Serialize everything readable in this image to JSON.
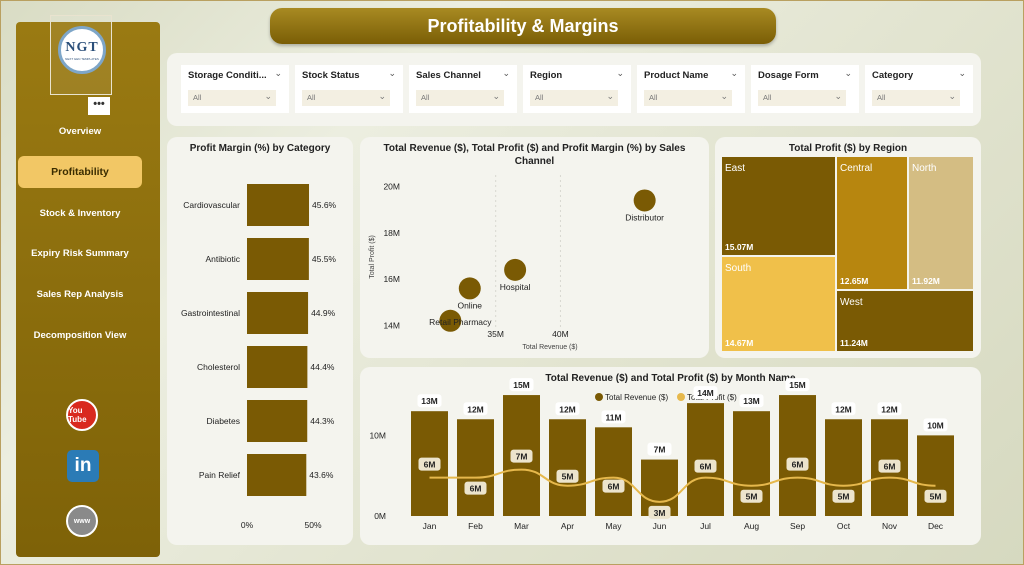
{
  "page_title": "Profitability & Margins",
  "logo": {
    "text": "NGT",
    "sub": "NEXT GEN TEMPLATES"
  },
  "more_label": "•••",
  "sidebar": {
    "items": [
      {
        "label": "Overview",
        "active": false
      },
      {
        "label": "Profitability",
        "active": true
      },
      {
        "label": "Stock & Inventory",
        "active": false
      },
      {
        "label": "Expiry Risk Summary",
        "active": false
      },
      {
        "label": "Sales Rep Analysis",
        "active": false
      },
      {
        "label": "Decomposition View",
        "active": false
      }
    ],
    "social": {
      "youtube": "You Tube",
      "linkedin": "in",
      "web": "www"
    }
  },
  "filters": [
    {
      "label": "Storage Conditi...",
      "value": "All"
    },
    {
      "label": "Stock Status",
      "value": "All"
    },
    {
      "label": "Sales Channel",
      "value": "All"
    },
    {
      "label": "Region",
      "value": "All"
    },
    {
      "label": "Product Name",
      "value": "All"
    },
    {
      "label": "Dosage Form",
      "value": "All"
    },
    {
      "label": "Category",
      "value": "All"
    }
  ],
  "colors": {
    "dark_gold": "#7a5a04",
    "mid_gold": "#b7860f",
    "light_gold": "#f0c04a",
    "tan": "#d4bd83",
    "line": "#e6b84c"
  },
  "chart_data": [
    {
      "type": "bar",
      "title": "Profit Margin (%) by Category",
      "categories": [
        "Cardiovascular",
        "Antibiotic",
        "Gastrointestinal",
        "Cholesterol",
        "Diabetes",
        "Pain Relief"
      ],
      "values": [
        45.6,
        45.5,
        44.9,
        44.4,
        44.3,
        43.6
      ],
      "value_labels": [
        "45.6%",
        "45.5%",
        "44.9%",
        "44.4%",
        "44.3%",
        "43.6%"
      ],
      "xlim": [
        0,
        50
      ],
      "x_ticks": [
        "0%",
        "50%"
      ]
    },
    {
      "type": "scatter",
      "title": "Total Revenue ($), Total Profit ($) and Profit Margin (%) by Sales Channel",
      "xlabel": "Total Revenue ($)",
      "ylabel": "Total Profit ($)",
      "points": [
        {
          "label": "Distributor",
          "x": 46.5,
          "y": 19.4
        },
        {
          "label": "Hospital",
          "x": 36.5,
          "y": 16.4
        },
        {
          "label": "Online",
          "x": 33.0,
          "y": 15.6
        },
        {
          "label": "Retail Pharmacy",
          "x": 31.5,
          "y": 14.2
        }
      ],
      "x_ticks": [
        {
          "v": 35,
          "label": "35M"
        },
        {
          "v": 40,
          "label": "40M"
        }
      ],
      "y_ticks": [
        {
          "v": 14,
          "label": "14M"
        },
        {
          "v": 16,
          "label": "16M"
        },
        {
          "v": 18,
          "label": "18M"
        },
        {
          "v": 20,
          "label": "20M"
        }
      ],
      "xlim": [
        28,
        50
      ],
      "ylim": [
        13.5,
        20.5
      ]
    },
    {
      "type": "treemap",
      "title": "Total Profit ($) by Region",
      "items": [
        {
          "label": "East",
          "value": 15.07,
          "value_label": "15.07M"
        },
        {
          "label": "Central",
          "value": 12.65,
          "value_label": "12.65M"
        },
        {
          "label": "North",
          "value": 11.92,
          "value_label": "11.92M"
        },
        {
          "label": "South",
          "value": 14.67,
          "value_label": "14.67M"
        },
        {
          "label": "West",
          "value": 11.24,
          "value_label": "11.24M"
        }
      ]
    },
    {
      "type": "bar",
      "title": "Total Revenue ($) and Total Profit ($) by Month Name",
      "legend": [
        "Total Revenue ($)",
        "Total Profit ($)"
      ],
      "categories": [
        "Jan",
        "Feb",
        "Mar",
        "Apr",
        "May",
        "Jun",
        "Jul",
        "Aug",
        "Sep",
        "Oct",
        "Nov",
        "Dec"
      ],
      "series": [
        {
          "name": "Total Revenue ($)",
          "values": [
            13,
            12,
            15,
            12,
            11,
            7,
            14,
            13,
            15,
            12,
            12,
            10
          ],
          "labels": [
            "13M",
            "12M",
            "15M",
            "12M",
            "11M",
            "7M",
            "14M",
            "13M",
            "15M",
            "12M",
            "12M",
            "10M"
          ]
        },
        {
          "name": "Total Profit ($)",
          "values": [
            6,
            6,
            7,
            5,
            6,
            3,
            6,
            5,
            6,
            5,
            6,
            5
          ],
          "labels": [
            "6M",
            "6M",
            "7M",
            "5M",
            "6M",
            "3M",
            "6M",
            "5M",
            "6M",
            "5M",
            "6M",
            "5M"
          ]
        }
      ],
      "y_ticks": [
        {
          "v": 0,
          "label": "0M"
        },
        {
          "v": 10,
          "label": "10M"
        }
      ],
      "ylim": [
        0,
        16
      ]
    }
  ]
}
